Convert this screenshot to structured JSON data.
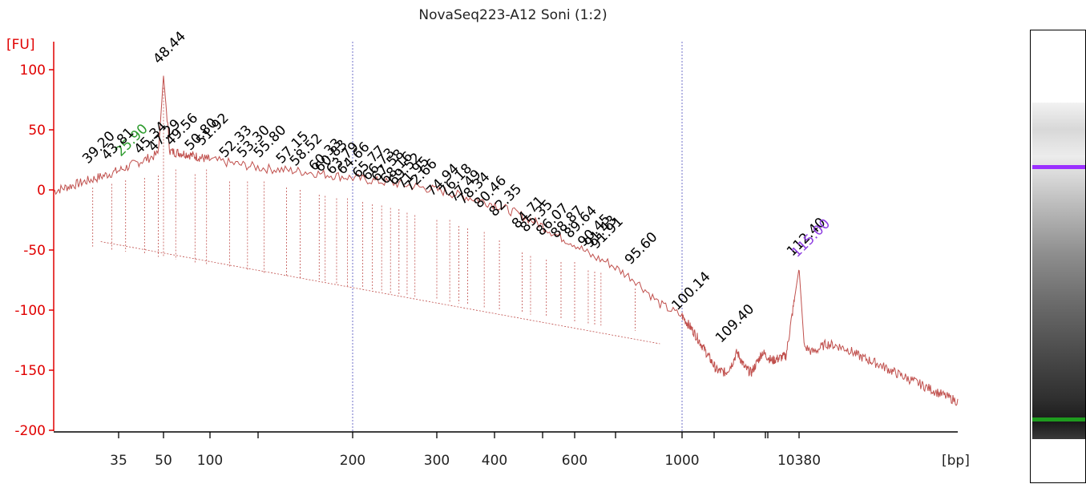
{
  "chart_data": {
    "type": "line",
    "title": "NovaSeq223-A12 Soni (1:2)",
    "ylabel": "[FU]",
    "xlabel": "[bp]",
    "ylim": [
      -200,
      115
    ],
    "y_ticks": [
      100,
      50,
      0,
      -50,
      -100,
      -150,
      -200
    ],
    "x_ticks": [
      35,
      50,
      100,
      200,
      300,
      400,
      600,
      1000,
      10380
    ],
    "reference_lines_bp": [
      200,
      1000
    ],
    "series": [
      {
        "values_x_bp": [
          20,
          30,
          35,
          40,
          45,
          48,
          50,
          55,
          70,
          100,
          130,
          160,
          200,
          250,
          300,
          350,
          400,
          450,
          500,
          550,
          600,
          650,
          700,
          750,
          800,
          900,
          1000,
          1200,
          1400,
          2000,
          2400,
          2700,
          3000,
          3200,
          3500,
          4000,
          5000,
          6000,
          7000,
          8000,
          10380,
          11000,
          12000,
          13000,
          14000,
          16000,
          18000,
          20000,
          25000,
          30000,
          40000,
          50000,
          60000
        ],
        "values_y": [
          -1,
          11,
          16,
          22,
          27,
          30,
          95,
          32,
          30,
          25,
          18,
          15,
          10,
          5,
          0,
          -6,
          -12,
          -20,
          -28,
          -38,
          -45,
          -55,
          -60,
          -68,
          -75,
          -95,
          -105,
          -115,
          -125,
          -150,
          -152,
          -145,
          -135,
          -140,
          -148,
          -152,
          -135,
          -142,
          -140,
          -138,
          -65,
          -130,
          -135,
          -132,
          -128,
          -130,
          -133,
          -138,
          -145,
          -152,
          -162,
          -170,
          -176
        ]
      }
    ],
    "peaks": [
      {
        "label": "48.44",
        "x": 50,
        "y": 95,
        "color": "#000000"
      },
      {
        "label": "25.90",
        "x": 37,
        "y": 18,
        "color": "#2e9b2e"
      },
      {
        "label": "39.20",
        "x": 28,
        "y": 12,
        "color": "#000000"
      },
      {
        "label": "43.81",
        "x": 33,
        "y": 15,
        "color": "#000000"
      },
      {
        "label": "45.34",
        "x": 43,
        "y": 20,
        "color": "#000000"
      },
      {
        "label": "47.29",
        "x": 48,
        "y": 22,
        "color": "#000000"
      },
      {
        "label": "49.56",
        "x": 60,
        "y": 27,
        "color": "#000000"
      },
      {
        "label": "50.80",
        "x": 80,
        "y": 23,
        "color": "#000000"
      },
      {
        "label": "51.92",
        "x": 95,
        "y": 27,
        "color": "#000000"
      },
      {
        "label": "52.33",
        "x": 110,
        "y": 17,
        "color": "#000000"
      },
      {
        "label": "53.30",
        "x": 120,
        "y": 17,
        "color": "#000000"
      },
      {
        "label": "55.80",
        "x": 130,
        "y": 17,
        "color": "#000000"
      },
      {
        "label": "57.15",
        "x": 145,
        "y": 12,
        "color": "#000000"
      },
      {
        "label": "58.52",
        "x": 155,
        "y": 10,
        "color": "#000000"
      },
      {
        "label": "60.33",
        "x": 170,
        "y": 6,
        "color": "#000000"
      },
      {
        "label": "60.83",
        "x": 175,
        "y": 5,
        "color": "#000000"
      },
      {
        "label": "63.79",
        "x": 185,
        "y": 3,
        "color": "#000000"
      },
      {
        "label": "64.66",
        "x": 195,
        "y": 3,
        "color": "#000000"
      },
      {
        "label": "65.77",
        "x": 210,
        "y": 0,
        "color": "#000000"
      },
      {
        "label": "66.73",
        "x": 220,
        "y": -2,
        "color": "#000000"
      },
      {
        "label": "67.58",
        "x": 230,
        "y": -3,
        "color": "#000000"
      },
      {
        "label": "68.16",
        "x": 240,
        "y": -5,
        "color": "#000000"
      },
      {
        "label": "69.52",
        "x": 250,
        "y": -6,
        "color": "#000000"
      },
      {
        "label": "71.95",
        "x": 260,
        "y": -9,
        "color": "#000000"
      },
      {
        "label": "72.66",
        "x": 270,
        "y": -11,
        "color": "#000000"
      },
      {
        "label": "74.94",
        "x": 300,
        "y": -15,
        "color": "#000000"
      },
      {
        "label": "76.18",
        "x": 320,
        "y": -15,
        "color": "#000000"
      },
      {
        "label": "77.49",
        "x": 335,
        "y": -20,
        "color": "#000000"
      },
      {
        "label": "78.34",
        "x": 350,
        "y": -22,
        "color": "#000000"
      },
      {
        "label": "80.46",
        "x": 380,
        "y": -25,
        "color": "#000000"
      },
      {
        "label": "82.35",
        "x": 410,
        "y": -32,
        "color": "#000000"
      },
      {
        "label": "84.71",
        "x": 460,
        "y": -42,
        "color": "#000000"
      },
      {
        "label": "85.35",
        "x": 480,
        "y": -45,
        "color": "#000000"
      },
      {
        "label": "86.07",
        "x": 520,
        "y": -48,
        "color": "#000000"
      },
      {
        "label": "88.87",
        "x": 560,
        "y": -50,
        "color": "#000000"
      },
      {
        "label": "89.64",
        "x": 600,
        "y": -50,
        "color": "#000000"
      },
      {
        "label": "90.45",
        "x": 640,
        "y": -57,
        "color": "#000000"
      },
      {
        "label": "91.43",
        "x": 660,
        "y": -58,
        "color": "#000000"
      },
      {
        "label": "91.91",
        "x": 680,
        "y": -59,
        "color": "#000000"
      },
      {
        "label": "95.60",
        "x": 800,
        "y": -72,
        "color": "#000000"
      },
      {
        "label": "100.14",
        "x": 1000,
        "y": -110,
        "color": "#000000"
      },
      {
        "label": "109.40",
        "x": 2400,
        "y": -137,
        "color": "#000000"
      },
      {
        "label": "112.40",
        "x": 10000,
        "y": -65,
        "color": "#000000"
      },
      {
        "label": "115.00",
        "x": 10700,
        "y": -66,
        "color": "#8e3ee0"
      }
    ],
    "grid": false,
    "colors": {
      "trace": "#c0504d",
      "axis": "#e00000",
      "text": "#000000",
      "ref_line": "#6f6fc9",
      "upper_marker": "#9b30ff",
      "lower_marker": "#1e9b1e"
    }
  },
  "gel": {
    "bands": [
      {
        "name": "upper-marker",
        "position": 0.185,
        "color": "#9b30ff"
      },
      {
        "name": "lower-marker",
        "position": 0.935,
        "color": "#1e9b1e"
      }
    ]
  }
}
